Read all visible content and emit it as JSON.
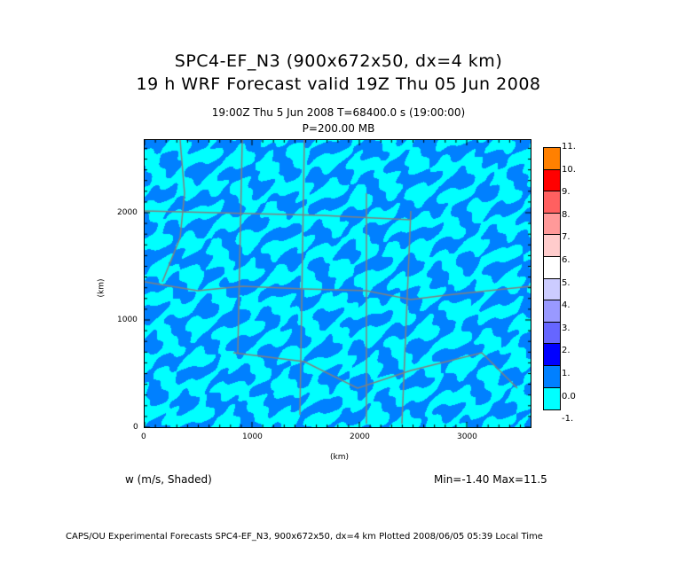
{
  "title": {
    "line1": "SPC4-EF_N3 (900x672x50, dx=4 km)",
    "line2": "19 h WRF Forecast valid 19Z Thu 05 Jun 2008"
  },
  "subtitle": {
    "time": "19:00Z Thu  5 Jun 2008     T=68400.0 s (19:00:00)",
    "level": "P=200.00 MB"
  },
  "axes": {
    "x_label": "(km)",
    "y_label": "(km)",
    "x_ticks": [
      "0",
      "1000",
      "2000",
      "3000"
    ],
    "y_ticks": [
      "0",
      "1000",
      "2000"
    ],
    "x_range_km": [
      0,
      3600
    ],
    "y_range_km": [
      0,
      2688
    ]
  },
  "colorbar": {
    "labels": [
      "11.",
      "10.",
      "9.",
      "8.",
      "7.",
      "6.",
      "5.",
      "4.",
      "3.",
      "2.",
      "1.",
      "0.0",
      "-1."
    ],
    "colors": [
      "#ff8000",
      "#ff0000",
      "#ff6060",
      "#ff9999",
      "#ffcccc",
      "#ffffff",
      "#ccccff",
      "#9999ff",
      "#6666ff",
      "#0000ff",
      "#0080ff",
      "#00ffff"
    ]
  },
  "field": {
    "name": "w (m/s, Shaded)",
    "stats": "Min=-1.40 Max=11.5"
  },
  "footer": "CAPS/OU Experimental Forecasts  SPC4-EF_N3, 900x672x50, dx=4 km  Plotted 2008/06/05 05:39 Local Time"
}
